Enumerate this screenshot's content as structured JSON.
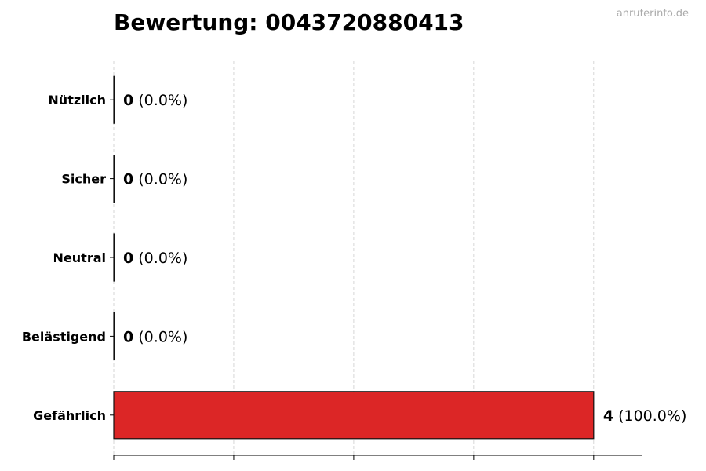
{
  "title": "Bewertung: 0043720880413",
  "watermark": "anruferinfo.de",
  "chart_data": {
    "type": "bar",
    "orientation": "horizontal",
    "categories": [
      "Nützlich",
      "Sicher",
      "Neutral",
      "Belästigend",
      "Gefährlich"
    ],
    "values": [
      0,
      0,
      0,
      0,
      4
    ],
    "value_labels": [
      "0",
      "0",
      "0",
      "0",
      "4"
    ],
    "percent_labels": [
      "(0.0%)",
      "(0.0%)",
      "(0.0%)",
      "(0.0%)",
      "(100.0%)"
    ],
    "xlim": [
      0,
      4.4
    ],
    "xticks": [
      0,
      1,
      2,
      3,
      4
    ],
    "grid": "x, dashed",
    "colors": [
      "#2e7d32",
      "#43a047",
      "#9e9e9e",
      "#f57c00",
      "#dc2626"
    ]
  }
}
